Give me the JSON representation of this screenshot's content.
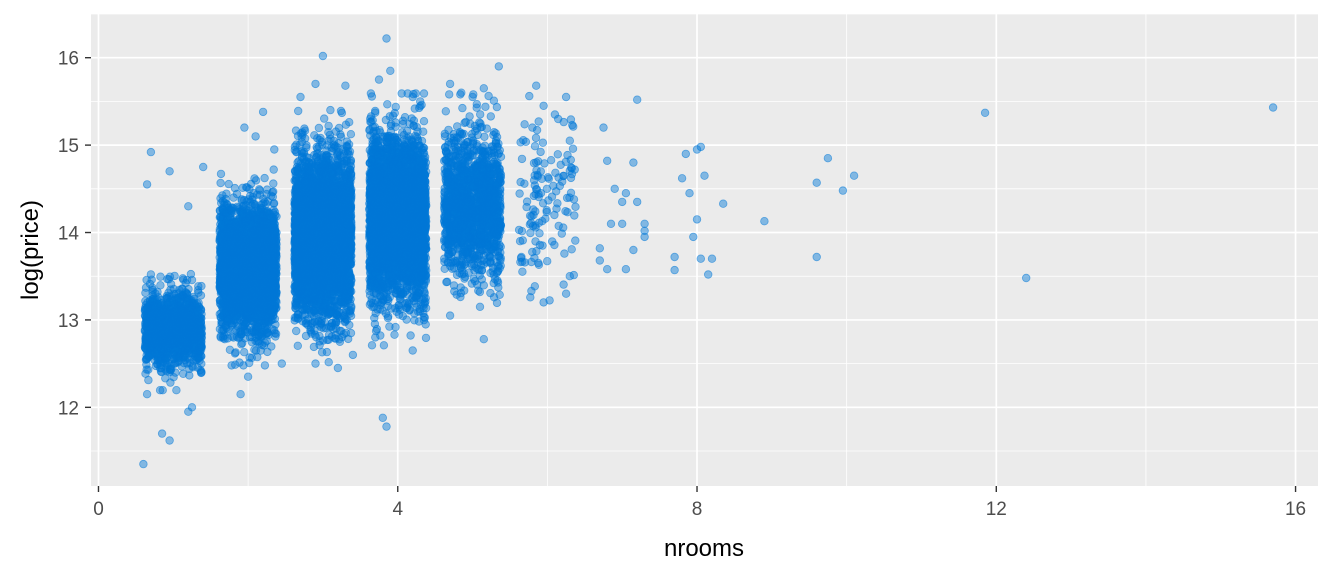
{
  "chart_data": {
    "type": "scatter",
    "xlabel": "nrooms",
    "ylabel": "log(price)",
    "xlim": [
      -0.1,
      16.3
    ],
    "ylim": [
      11.1,
      16.5
    ],
    "x_ticks": [
      0,
      4,
      8,
      12,
      16
    ],
    "x_tick_labels": [
      "0",
      "4",
      "8",
      "12",
      "16"
    ],
    "y_ticks": [
      12,
      13,
      14,
      15,
      16
    ],
    "y_tick_labels": [
      "12",
      "13",
      "14",
      "15",
      "16"
    ],
    "grid": true,
    "legend": "none",
    "colors": {
      "point": "#0078d7",
      "panel": "#ebebeb",
      "grid": "#ffffff"
    },
    "clusters": [
      {
        "x_center": 1,
        "jitter": 0.38,
        "y_mean": 12.9,
        "y_sd": 0.22,
        "n": 1200
      },
      {
        "x_center": 2,
        "jitter": 0.38,
        "y_mean": 13.6,
        "y_sd": 0.35,
        "n": 3000
      },
      {
        "x_center": 3,
        "jitter": 0.38,
        "y_mean": 13.95,
        "y_sd": 0.45,
        "n": 4000
      },
      {
        "x_center": 4,
        "jitter": 0.38,
        "y_mean": 14.15,
        "y_sd": 0.45,
        "n": 3500
      },
      {
        "x_center": 5,
        "jitter": 0.38,
        "y_mean": 14.3,
        "y_sd": 0.4,
        "n": 1400
      },
      {
        "x_center": 6,
        "jitter": 0.38,
        "y_mean": 14.35,
        "y_sd": 0.45,
        "n": 130
      }
    ],
    "points": [
      {
        "x": 0.6,
        "y": 11.35
      },
      {
        "x": 0.95,
        "y": 11.62
      },
      {
        "x": 0.85,
        "y": 11.7
      },
      {
        "x": 0.65,
        "y": 12.15
      },
      {
        "x": 1.25,
        "y": 12.0
      },
      {
        "x": 1.2,
        "y": 11.95
      },
      {
        "x": 0.7,
        "y": 14.92
      },
      {
        "x": 1.4,
        "y": 14.75
      },
      {
        "x": 0.95,
        "y": 14.7
      },
      {
        "x": 0.65,
        "y": 14.55
      },
      {
        "x": 1.2,
        "y": 14.3
      },
      {
        "x": 1.9,
        "y": 12.15
      },
      {
        "x": 2.0,
        "y": 12.35
      },
      {
        "x": 2.45,
        "y": 12.5
      },
      {
        "x": 1.95,
        "y": 15.2
      },
      {
        "x": 2.2,
        "y": 15.38
      },
      {
        "x": 2.1,
        "y": 15.1
      },
      {
        "x": 2.35,
        "y": 14.95
      },
      {
        "x": 3.0,
        "y": 16.02
      },
      {
        "x": 2.9,
        "y": 15.7
      },
      {
        "x": 3.3,
        "y": 15.68
      },
      {
        "x": 2.7,
        "y": 15.55
      },
      {
        "x": 3.1,
        "y": 15.4
      },
      {
        "x": 2.9,
        "y": 12.5
      },
      {
        "x": 3.2,
        "y": 12.45
      },
      {
        "x": 3.4,
        "y": 12.6
      },
      {
        "x": 3.85,
        "y": 16.22
      },
      {
        "x": 3.9,
        "y": 15.85
      },
      {
        "x": 3.75,
        "y": 15.75
      },
      {
        "x": 4.2,
        "y": 15.55
      },
      {
        "x": 4.3,
        "y": 15.5
      },
      {
        "x": 3.8,
        "y": 11.88
      },
      {
        "x": 3.85,
        "y": 11.78
      },
      {
        "x": 4.2,
        "y": 12.65
      },
      {
        "x": 3.7,
        "y": 12.8
      },
      {
        "x": 4.7,
        "y": 15.7
      },
      {
        "x": 5.35,
        "y": 15.9
      },
      {
        "x": 5.0,
        "y": 15.55
      },
      {
        "x": 5.15,
        "y": 15.65
      },
      {
        "x": 4.85,
        "y": 15.6
      },
      {
        "x": 5.15,
        "y": 12.78
      },
      {
        "x": 4.7,
        "y": 13.05
      },
      {
        "x": 5.1,
        "y": 13.15
      },
      {
        "x": 5.85,
        "y": 15.68
      },
      {
        "x": 5.95,
        "y": 15.45
      },
      {
        "x": 6.25,
        "y": 15.55
      },
      {
        "x": 6.1,
        "y": 15.35
      },
      {
        "x": 5.8,
        "y": 15.2
      },
      {
        "x": 6.3,
        "y": 15.05
      },
      {
        "x": 6.25,
        "y": 13.3
      },
      {
        "x": 5.95,
        "y": 13.2
      },
      {
        "x": 6.3,
        "y": 13.5
      },
      {
        "x": 7.2,
        "y": 15.52
      },
      {
        "x": 6.75,
        "y": 15.2
      },
      {
        "x": 6.8,
        "y": 14.82
      },
      {
        "x": 6.9,
        "y": 14.5
      },
      {
        "x": 7.05,
        "y": 14.45
      },
      {
        "x": 7.0,
        "y": 14.35
      },
      {
        "x": 7.2,
        "y": 14.35
      },
      {
        "x": 7.15,
        "y": 14.8
      },
      {
        "x": 6.85,
        "y": 14.1
      },
      {
        "x": 7.0,
        "y": 14.1
      },
      {
        "x": 7.3,
        "y": 14.1
      },
      {
        "x": 7.3,
        "y": 13.95
      },
      {
        "x": 7.15,
        "y": 13.8
      },
      {
        "x": 6.7,
        "y": 13.82
      },
      {
        "x": 6.7,
        "y": 13.68
      },
      {
        "x": 6.8,
        "y": 13.58
      },
      {
        "x": 7.05,
        "y": 13.58
      },
      {
        "x": 7.3,
        "y": 14.02
      },
      {
        "x": 7.85,
        "y": 14.9
      },
      {
        "x": 8.05,
        "y": 14.98
      },
      {
        "x": 8.0,
        "y": 14.95
      },
      {
        "x": 7.8,
        "y": 14.62
      },
      {
        "x": 7.9,
        "y": 14.45
      },
      {
        "x": 8.1,
        "y": 14.65
      },
      {
        "x": 8.35,
        "y": 14.33
      },
      {
        "x": 8.0,
        "y": 14.15
      },
      {
        "x": 7.95,
        "y": 13.95
      },
      {
        "x": 7.7,
        "y": 13.72
      },
      {
        "x": 7.7,
        "y": 13.57
      },
      {
        "x": 8.05,
        "y": 13.7
      },
      {
        "x": 8.2,
        "y": 13.7
      },
      {
        "x": 8.15,
        "y": 13.52
      },
      {
        "x": 8.9,
        "y": 14.13
      },
      {
        "x": 9.75,
        "y": 14.85
      },
      {
        "x": 9.6,
        "y": 14.57
      },
      {
        "x": 10.1,
        "y": 14.65
      },
      {
        "x": 9.95,
        "y": 14.48
      },
      {
        "x": 9.6,
        "y": 13.72
      },
      {
        "x": 11.85,
        "y": 15.37
      },
      {
        "x": 12.4,
        "y": 13.48
      },
      {
        "x": 15.7,
        "y": 15.43
      }
    ]
  }
}
